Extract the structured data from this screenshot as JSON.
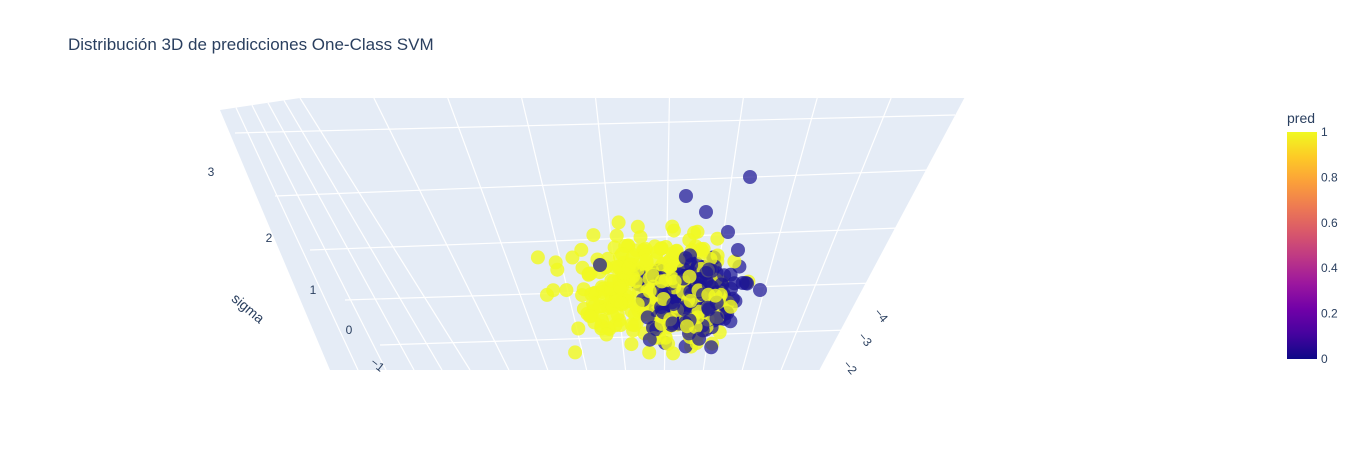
{
  "chart_data": {
    "type": "scatter",
    "title": "Distribución 3D de predicciones One-Class SVM",
    "z_axis": {
      "label": "sigma",
      "ticks": [
        "−1",
        "0",
        "1",
        "2",
        "3"
      ]
    },
    "x_axis": {
      "label": "",
      "ticks": [
        "−2",
        "−3",
        "−4"
      ]
    },
    "colorbar": {
      "title": "pred",
      "ticks": [
        "0",
        "0.2",
        "0.4",
        "0.6",
        "0.8",
        "1"
      ],
      "range": [
        0,
        1
      ],
      "colorscale": [
        "#0d0887",
        "#46039f",
        "#7201a8",
        "#9c179e",
        "#bd3786",
        "#d8576b",
        "#ed7953",
        "#fb9f3a",
        "#fdca26",
        "#f0f921"
      ]
    },
    "series_colors": {
      "pred_0": "#1c1594",
      "pred_1": "#f0f921"
    },
    "grid": true,
    "scene_background": "#e5ecf6"
  }
}
